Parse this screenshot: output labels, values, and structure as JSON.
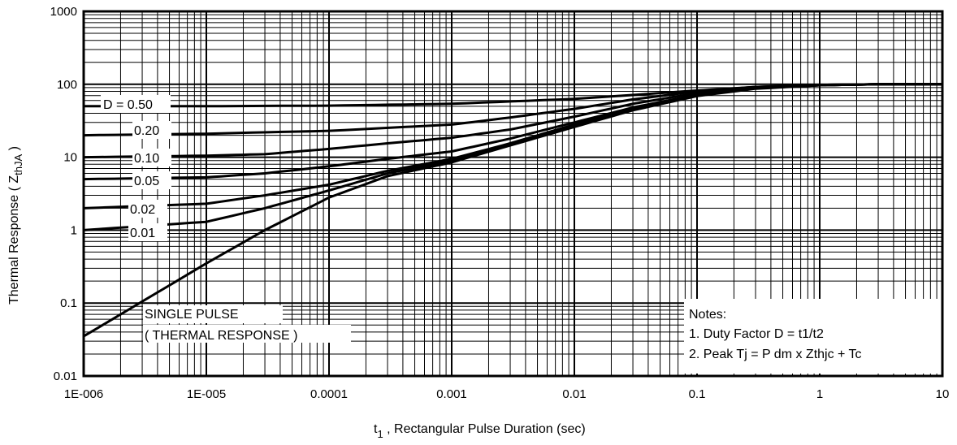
{
  "chart_data": {
    "type": "line",
    "title": "",
    "xlabel": "t",
    "xlabel_sub": "1",
    "xlabel_rest": " , Rectangular Pulse Duration (sec)",
    "ylabel": "Thermal Response ( Z",
    "ylabel_sub": "thJA",
    "ylabel_rest": " )",
    "x_scale": "log",
    "y_scale": "log",
    "xlim": [
      1e-06,
      10
    ],
    "ylim": [
      0.01,
      1000
    ],
    "grid": true,
    "x_ticks": [
      {
        "value": 1e-06,
        "label": "1E-006"
      },
      {
        "value": 1e-05,
        "label": "1E-005"
      },
      {
        "value": 0.0001,
        "label": "0.0001"
      },
      {
        "value": 0.001,
        "label": "0.001"
      },
      {
        "value": 0.01,
        "label": "0.01"
      },
      {
        "value": 0.1,
        "label": "0.1"
      },
      {
        "value": 1,
        "label": "1"
      },
      {
        "value": 10,
        "label": "10"
      }
    ],
    "y_ticks": [
      {
        "value": 1000,
        "label": "1000"
      },
      {
        "value": 100,
        "label": "100"
      },
      {
        "value": 10,
        "label": "10"
      },
      {
        "value": 1,
        "label": "1"
      },
      {
        "value": 0.1,
        "label": "0.1"
      },
      {
        "value": 0.01,
        "label": "0.01"
      }
    ],
    "series": [
      {
        "name": "D = 0.50",
        "points": [
          [
            1e-06,
            50
          ],
          [
            1e-05,
            50
          ],
          [
            0.0001,
            51
          ],
          [
            0.001,
            54
          ],
          [
            0.01,
            63
          ],
          [
            0.1,
            82
          ],
          [
            0.3,
            92
          ],
          [
            1,
            98
          ],
          [
            3,
            100
          ],
          [
            10,
            100
          ]
        ]
      },
      {
        "name": "0.20",
        "points": [
          [
            1e-06,
            20
          ],
          [
            1e-05,
            21
          ],
          [
            0.0001,
            23
          ],
          [
            0.001,
            28
          ],
          [
            0.003,
            35
          ],
          [
            0.01,
            46
          ],
          [
            0.03,
            62
          ],
          [
            0.1,
            80
          ],
          [
            0.3,
            92
          ],
          [
            1,
            98
          ],
          [
            3,
            100
          ],
          [
            10,
            100
          ]
        ]
      },
      {
        "name": "0.10",
        "points": [
          [
            1e-06,
            10
          ],
          [
            1e-05,
            10.5
          ],
          [
            3e-05,
            11
          ],
          [
            0.0001,
            13
          ],
          [
            0.0003,
            15.5
          ],
          [
            0.001,
            18.5
          ],
          [
            0.003,
            24
          ],
          [
            0.01,
            36
          ],
          [
            0.03,
            54
          ],
          [
            0.1,
            76
          ],
          [
            0.3,
            90
          ],
          [
            1,
            98
          ],
          [
            3,
            100
          ],
          [
            10,
            100
          ]
        ]
      },
      {
        "name": "0.05",
        "points": [
          [
            1e-06,
            5
          ],
          [
            1e-05,
            5.3
          ],
          [
            3e-05,
            6
          ],
          [
            0.0001,
            7.5
          ],
          [
            0.0003,
            9.5
          ],
          [
            0.001,
            12
          ],
          [
            0.003,
            18
          ],
          [
            0.01,
            30
          ],
          [
            0.03,
            48
          ],
          [
            0.1,
            72
          ],
          [
            0.3,
            89
          ],
          [
            1,
            98
          ],
          [
            3,
            100
          ],
          [
            10,
            100
          ]
        ]
      },
      {
        "name": "0.02",
        "points": [
          [
            1e-06,
            2
          ],
          [
            1e-05,
            2.3
          ],
          [
            3e-05,
            3
          ],
          [
            0.0001,
            4.2
          ],
          [
            0.0003,
            6.5
          ],
          [
            0.001,
            9.5
          ],
          [
            0.003,
            15.5
          ],
          [
            0.01,
            28
          ],
          [
            0.03,
            46
          ],
          [
            0.1,
            70
          ],
          [
            0.3,
            88
          ],
          [
            1,
            97
          ],
          [
            3,
            100
          ],
          [
            10,
            100
          ]
        ]
      },
      {
        "name": "0.01",
        "points": [
          [
            1e-06,
            1
          ],
          [
            1e-05,
            1.3
          ],
          [
            3e-05,
            2
          ],
          [
            0.0001,
            3.5
          ],
          [
            0.0003,
            6
          ],
          [
            0.001,
            9
          ],
          [
            0.003,
            15
          ],
          [
            0.01,
            27
          ],
          [
            0.03,
            45
          ],
          [
            0.1,
            70
          ],
          [
            0.3,
            88
          ],
          [
            1,
            97
          ],
          [
            3,
            100
          ],
          [
            10,
            100
          ]
        ]
      },
      {
        "name": "SINGLE PULSE",
        "points": [
          [
            1e-06,
            0.035
          ],
          [
            1e-05,
            0.35
          ],
          [
            3e-05,
            1
          ],
          [
            0.0001,
            2.8
          ],
          [
            0.0003,
            5.5
          ],
          [
            0.001,
            8.5
          ],
          [
            0.003,
            14.5
          ],
          [
            0.01,
            26
          ],
          [
            0.03,
            44
          ],
          [
            0.1,
            69
          ],
          [
            0.3,
            87
          ],
          [
            1,
            97
          ],
          [
            3,
            100
          ],
          [
            10,
            100
          ]
        ]
      }
    ],
    "curve_labels": {
      "d050": "D = 0.50",
      "d020": "0.20",
      "d010": "0.10",
      "d005": "0.05",
      "d002": "0.02",
      "d001": "0.01",
      "single_1": "SINGLE PULSE",
      "single_2": "( THERMAL RESPONSE )"
    },
    "notes": {
      "heading": "Notes:",
      "line1": "1. Duty Factor D = t1/t2",
      "line2": "2. Peak Tj = P dm x Zthjc + Tc"
    }
  }
}
